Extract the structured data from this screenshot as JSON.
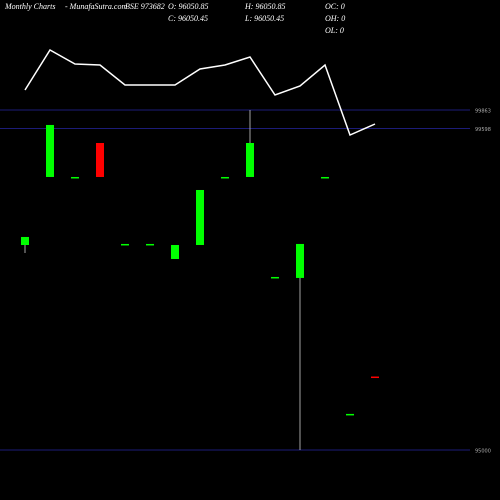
{
  "header": {
    "site": "Monthly Charts",
    "brand": "- MunafaSutra.com",
    "symbol": "BSE 973682",
    "open": "O: 96050.85",
    "high": "H: 96050.85",
    "oc": "OC: 0",
    "close": "C: 96050.45",
    "low": "L: 96050.45",
    "oh": "OH: 0",
    "ol": "OL: 0"
  },
  "chart_data": {
    "type": "candlestick",
    "categories": [
      null,
      null,
      null,
      null,
      null,
      null,
      null,
      null,
      null,
      null,
      null,
      null,
      null,
      null,
      null
    ],
    "open": [
      97932,
      98905,
      98905,
      99391,
      97947,
      97947,
      97732,
      97932,
      98905,
      98905,
      97475,
      97461,
      98905,
      95516,
      96050.85
    ],
    "high": [
      98047,
      99649,
      98905,
      99391,
      97947,
      97947,
      97932,
      98719,
      98905,
      99863,
      97475,
      97947,
      98905,
      95516,
      96050.85
    ],
    "low": [
      97818,
      98905,
      98905,
      98905,
      97947,
      97947,
      97732,
      97932,
      98905,
      98905,
      97475,
      95000,
      98905,
      95516,
      96050.45
    ],
    "close": [
      98047,
      99649,
      98905,
      98905,
      97947,
      97947,
      97932,
      98719,
      98905,
      99391,
      97475,
      97947,
      98905,
      95516,
      96050.45
    ],
    "up_color": "#00ff00",
    "down_color": "#ff0000",
    "line": {
      "color": "#ffffff",
      "values": [
        60,
        100,
        86,
        85,
        65,
        65,
        65,
        81,
        85,
        93,
        55,
        64,
        85,
        15,
        26
      ],
      "ylim": [
        0,
        150
      ]
    },
    "ylim": [
      95000,
      99863
    ],
    "yticks": [
      99863,
      99598,
      95000
    ],
    "grid": true,
    "grid_color": "#1c1c78"
  }
}
